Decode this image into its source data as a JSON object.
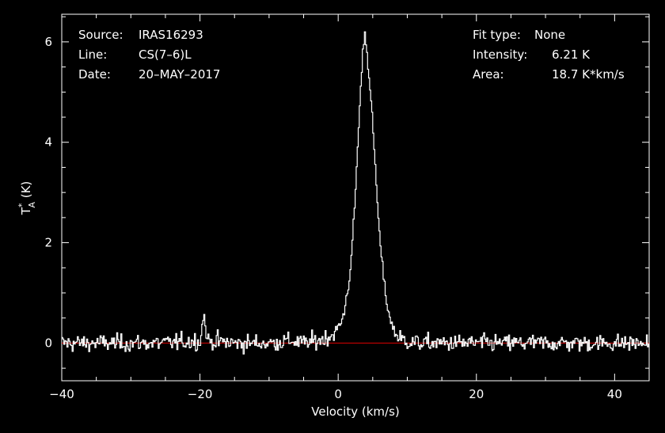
{
  "info_left": [
    {
      "label": "Source:",
      "value": "IRAS16293"
    },
    {
      "label": "Line:",
      "value": "CS(7–6)L"
    },
    {
      "label": "Date:",
      "value": "20–MAY–2017"
    }
  ],
  "info_right": [
    {
      "label": "Fit type:",
      "value": "None"
    },
    {
      "label": "Intensity:",
      "value": "6.21 K"
    },
    {
      "label": "Area:",
      "value": "18.7 K*km/s"
    }
  ],
  "chart_data": {
    "type": "line",
    "xlabel": "Velocity (km/s)",
    "ylabel_main": "T",
    "ylabel_sup": "*",
    "ylabel_sub": "A",
    "ylabel_unit": " (K)",
    "xlim": [
      -40,
      45
    ],
    "ylim": [
      -0.75,
      6.55
    ],
    "xticks": [
      -40,
      -20,
      0,
      20,
      40
    ],
    "xtick_labels": [
      "−40",
      "−20",
      "0",
      "20",
      "40"
    ],
    "yticks": [
      0,
      2,
      4,
      6
    ],
    "ytick_labels": [
      "0",
      "2",
      "4",
      "6"
    ],
    "grid": false,
    "colors": {
      "background": "#000000",
      "spectrum": "#ffffff",
      "baseline": "#e00000",
      "axes": "#ffffff"
    },
    "baseline_value": 0,
    "series": [
      {
        "x": [
          -40.0,
          -35.0,
          -30.0,
          -25.0,
          -20.0,
          -19.5,
          -19.0,
          -15.0,
          -10.0,
          -7.0,
          -5.0,
          -3.0,
          -2.0,
          -1.0,
          0.0,
          0.5,
          1.0,
          1.5,
          2.0,
          2.5,
          3.0,
          3.5,
          3.8,
          4.0,
          4.5,
          5.0,
          5.5,
          6.0,
          6.5,
          7.0,
          7.5,
          8.0,
          8.5,
          9.0,
          10.0,
          12.0,
          15.0,
          20.0,
          25.0,
          30.0,
          35.0,
          40.0,
          45.0
        ],
        "values": [
          0.0,
          0.0,
          0.0,
          0.0,
          0.05,
          0.6,
          0.05,
          0.0,
          0.0,
          0.05,
          0.0,
          0.05,
          0.1,
          0.15,
          0.3,
          0.45,
          0.8,
          1.2,
          2.0,
          3.2,
          4.6,
          5.8,
          6.21,
          5.9,
          5.2,
          4.2,
          3.0,
          2.0,
          1.3,
          0.8,
          0.45,
          0.25,
          0.15,
          0.08,
          0.03,
          0.0,
          0.0,
          0.0,
          0.0,
          0.0,
          0.0,
          0.0,
          0.0
        ],
        "noise_rms": 0.12
      }
    ]
  }
}
